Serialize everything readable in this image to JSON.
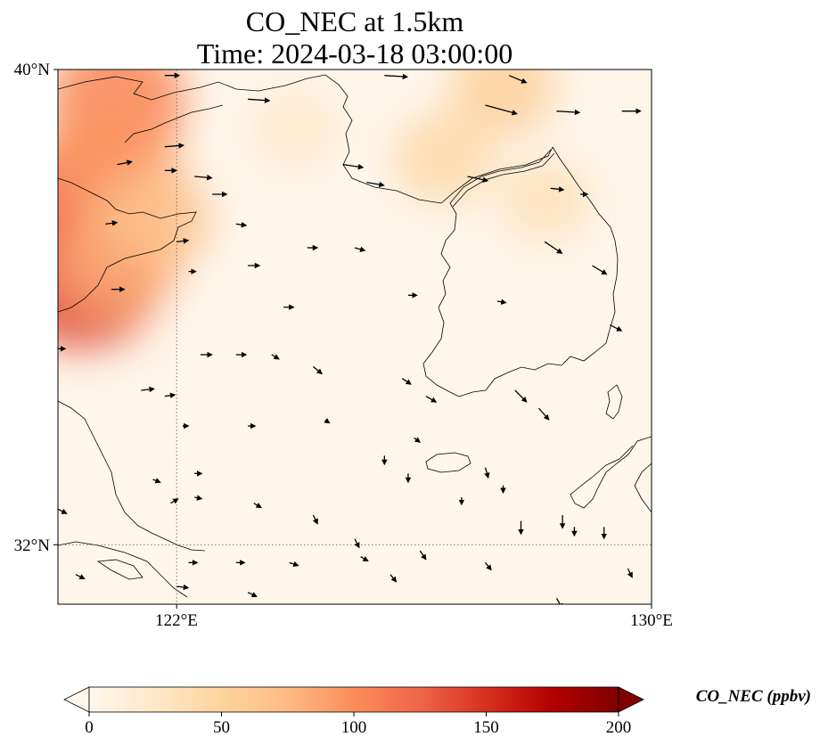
{
  "title": {
    "line1": "CO_NEC at 1.5km",
    "line2": "Time: 2024-03-18 03:00:00"
  },
  "map": {
    "lon_range": [
      120,
      130
    ],
    "lat_range": [
      31,
      40
    ],
    "lat_ticks": [
      {
        "value": 40,
        "label": "40°N"
      },
      {
        "value": 32,
        "label": "32°N"
      }
    ],
    "lon_ticks": [
      {
        "value": 122,
        "label": "122°E"
      },
      {
        "value": 130,
        "label": "130°E"
      }
    ],
    "gridlines": {
      "lat": [
        32
      ],
      "lon": [
        122
      ],
      "style": "dotted"
    },
    "features": [
      "coastlines",
      "Yellow Sea",
      "Korean Peninsula",
      "Shandong Peninsula",
      "Jeju Island",
      "Tsushima",
      "Yangtze estuary"
    ]
  },
  "colorbar": {
    "label": "CO_NEC (ppbv)",
    "min": 0,
    "max": 200,
    "extend": "both",
    "colormap": "OrRd",
    "ticks": [
      {
        "value": 0,
        "label": "0"
      },
      {
        "value": 50,
        "label": "50"
      },
      {
        "value": 100,
        "label": "100"
      },
      {
        "value": 150,
        "label": "150"
      },
      {
        "value": 200,
        "label": "200"
      }
    ],
    "stops": [
      "#fff7ec",
      "#fee8c8",
      "#fdd49e",
      "#fdbb84",
      "#fc8d59",
      "#ef6548",
      "#d7301f",
      "#b30000",
      "#7f0000"
    ]
  },
  "concentration_blobs": [
    {
      "lon": 120.4,
      "lat": 36.5,
      "value": 140
    },
    {
      "lon": 120.3,
      "lat": 37.8,
      "value": 120
    },
    {
      "lon": 121.0,
      "lat": 39.5,
      "value": 105
    },
    {
      "lon": 120.9,
      "lat": 38.5,
      "value": 95
    },
    {
      "lon": 121.0,
      "lat": 36.8,
      "value": 85
    },
    {
      "lon": 121.6,
      "lat": 37.5,
      "value": 70
    },
    {
      "lon": 127.5,
      "lat": 39.7,
      "value": 55
    },
    {
      "lon": 126.5,
      "lat": 38.5,
      "value": 45
    },
    {
      "lon": 128.2,
      "lat": 37.8,
      "value": 35
    },
    {
      "lon": 124.0,
      "lat": 39.0,
      "value": 25
    }
  ],
  "wind_vectors": [
    {
      "lon": 121.8,
      "lat": 39.9,
      "u": 1.0,
      "v": 0.0
    },
    {
      "lon": 123.2,
      "lat": 39.5,
      "u": 1.5,
      "v": -0.1
    },
    {
      "lon": 125.5,
      "lat": 39.9,
      "u": 1.6,
      "v": -0.1
    },
    {
      "lon": 127.6,
      "lat": 39.9,
      "u": 1.2,
      "v": -0.5
    },
    {
      "lon": 127.2,
      "lat": 39.4,
      "u": 2.2,
      "v": -0.6
    },
    {
      "lon": 128.4,
      "lat": 39.3,
      "u": 1.6,
      "v": -0.1
    },
    {
      "lon": 129.5,
      "lat": 39.3,
      "u": 1.3,
      "v": 0.0
    },
    {
      "lon": 121.8,
      "lat": 38.7,
      "u": 1.3,
      "v": 0.1
    },
    {
      "lon": 121.0,
      "lat": 38.4,
      "u": 1.0,
      "v": 0.2
    },
    {
      "lon": 121.8,
      "lat": 38.3,
      "u": 0.8,
      "v": 0.0
    },
    {
      "lon": 122.3,
      "lat": 38.2,
      "u": 1.2,
      "v": -0.1
    },
    {
      "lon": 122.6,
      "lat": 37.9,
      "u": 1.0,
      "v": 0.0
    },
    {
      "lon": 124.8,
      "lat": 38.4,
      "u": 1.4,
      "v": -0.2
    },
    {
      "lon": 125.2,
      "lat": 38.1,
      "u": 1.2,
      "v": -0.2
    },
    {
      "lon": 126.9,
      "lat": 38.2,
      "u": 1.4,
      "v": -0.3
    },
    {
      "lon": 128.3,
      "lat": 38.0,
      "u": 0.9,
      "v": -0.1
    },
    {
      "lon": 128.8,
      "lat": 37.9,
      "u": 0.5,
      "v": 0.0
    },
    {
      "lon": 120.8,
      "lat": 37.4,
      "u": 0.8,
      "v": 0.1
    },
    {
      "lon": 122.0,
      "lat": 37.1,
      "u": 0.8,
      "v": 0.1
    },
    {
      "lon": 123.0,
      "lat": 37.4,
      "u": 0.7,
      "v": -0.1
    },
    {
      "lon": 123.2,
      "lat": 36.7,
      "u": 0.8,
      "v": 0.0
    },
    {
      "lon": 124.2,
      "lat": 37.0,
      "u": 0.7,
      "v": 0.0
    },
    {
      "lon": 125.0,
      "lat": 37.0,
      "u": 0.7,
      "v": -0.2
    },
    {
      "lon": 128.2,
      "lat": 37.1,
      "u": 1.2,
      "v": -0.8
    },
    {
      "lon": 129.0,
      "lat": 36.7,
      "u": 1.0,
      "v": -0.6
    },
    {
      "lon": 120.9,
      "lat": 36.3,
      "u": 0.9,
      "v": 0.0
    },
    {
      "lon": 122.2,
      "lat": 36.6,
      "u": 0.5,
      "v": 0.0
    },
    {
      "lon": 123.8,
      "lat": 36.0,
      "u": 0.7,
      "v": 0.0
    },
    {
      "lon": 125.9,
      "lat": 36.2,
      "u": 0.6,
      "v": 0.0
    },
    {
      "lon": 127.4,
      "lat": 36.1,
      "u": 0.6,
      "v": -0.1
    },
    {
      "lon": 129.3,
      "lat": 35.7,
      "u": 0.8,
      "v": -0.4
    },
    {
      "lon": 122.4,
      "lat": 35.2,
      "u": 0.8,
      "v": 0.0
    },
    {
      "lon": 123.0,
      "lat": 35.2,
      "u": 0.7,
      "v": 0.0
    },
    {
      "lon": 123.6,
      "lat": 35.2,
      "u": 0.5,
      "v": -0.3
    },
    {
      "lon": 124.3,
      "lat": 35.0,
      "u": 0.6,
      "v": -0.5
    },
    {
      "lon": 125.8,
      "lat": 34.8,
      "u": 0.6,
      "v": -0.4
    },
    {
      "lon": 121.4,
      "lat": 34.6,
      "u": 0.9,
      "v": 0.1
    },
    {
      "lon": 121.8,
      "lat": 34.5,
      "u": 0.7,
      "v": 0.1
    },
    {
      "lon": 126.2,
      "lat": 34.5,
      "u": 0.7,
      "v": -0.4
    },
    {
      "lon": 127.7,
      "lat": 34.6,
      "u": 0.8,
      "v": -0.8
    },
    {
      "lon": 128.1,
      "lat": 34.3,
      "u": 0.7,
      "v": -0.8
    },
    {
      "lon": 130.0,
      "lat": 34.2,
      "u": 0.5,
      "v": -0.5
    },
    {
      "lon": 122.1,
      "lat": 34.0,
      "u": 0.4,
      "v": 0.0
    },
    {
      "lon": 123.2,
      "lat": 34.0,
      "u": 0.5,
      "v": 0.0
    },
    {
      "lon": 124.5,
      "lat": 34.1,
      "u": 0.3,
      "v": -0.2
    },
    {
      "lon": 126.0,
      "lat": 33.8,
      "u": 0.4,
      "v": -0.3
    },
    {
      "lon": 125.5,
      "lat": 33.5,
      "u": 0.0,
      "v": -0.6
    },
    {
      "lon": 125.9,
      "lat": 33.2,
      "u": 0.0,
      "v": -0.6
    },
    {
      "lon": 127.2,
      "lat": 33.3,
      "u": 0.2,
      "v": -0.7
    },
    {
      "lon": 127.5,
      "lat": 33.0,
      "u": 0.0,
      "v": -0.5
    },
    {
      "lon": 126.8,
      "lat": 32.8,
      "u": 0.0,
      "v": -0.5
    },
    {
      "lon": 127.8,
      "lat": 32.4,
      "u": 0.0,
      "v": -0.9
    },
    {
      "lon": 128.5,
      "lat": 32.5,
      "u": 0.0,
      "v": -0.9
    },
    {
      "lon": 128.7,
      "lat": 32.3,
      "u": 0.0,
      "v": -0.6
    },
    {
      "lon": 129.2,
      "lat": 32.3,
      "u": 0.0,
      "v": -0.8
    },
    {
      "lon": 121.9,
      "lat": 32.7,
      "u": 0.5,
      "v": 0.3
    },
    {
      "lon": 122.3,
      "lat": 32.8,
      "u": 0.5,
      "v": -0.1
    },
    {
      "lon": 121.6,
      "lat": 33.1,
      "u": 0.5,
      "v": -0.2
    },
    {
      "lon": 122.3,
      "lat": 33.2,
      "u": 0.5,
      "v": 0.0
    },
    {
      "lon": 123.3,
      "lat": 32.7,
      "u": 0.5,
      "v": -0.3
    },
    {
      "lon": 124.3,
      "lat": 32.5,
      "u": 0.3,
      "v": -0.6
    },
    {
      "lon": 125.0,
      "lat": 32.1,
      "u": 0.3,
      "v": -0.6
    },
    {
      "lon": 126.1,
      "lat": 31.9,
      "u": 0.4,
      "v": -0.6
    },
    {
      "lon": 127.2,
      "lat": 31.7,
      "u": 0.4,
      "v": -0.5
    },
    {
      "lon": 122.2,
      "lat": 31.7,
      "u": 0.6,
      "v": 0.0
    },
    {
      "lon": 123.0,
      "lat": 31.7,
      "u": 0.6,
      "v": 0.0
    },
    {
      "lon": 123.9,
      "lat": 31.7,
      "u": 0.6,
      "v": -0.2
    },
    {
      "lon": 125.1,
      "lat": 31.8,
      "u": 0.5,
      "v": -0.3
    },
    {
      "lon": 120.3,
      "lat": 31.5,
      "u": 0.6,
      "v": -0.3
    },
    {
      "lon": 122.0,
      "lat": 31.3,
      "u": 0.8,
      "v": -0.1
    },
    {
      "lon": 123.2,
      "lat": 31.2,
      "u": 0.6,
      "v": -0.3
    },
    {
      "lon": 125.6,
      "lat": 31.5,
      "u": 0.4,
      "v": -0.5
    },
    {
      "lon": 128.4,
      "lat": 31.1,
      "u": 0.4,
      "v": -0.7
    },
    {
      "lon": 120.0,
      "lat": 32.6,
      "u": 0.6,
      "v": -0.3
    },
    {
      "lon": 120.0,
      "lat": 35.3,
      "u": 0.5,
      "v": 0.0
    },
    {
      "lon": 129.6,
      "lat": 31.6,
      "u": 0.3,
      "v": -0.6
    }
  ]
}
